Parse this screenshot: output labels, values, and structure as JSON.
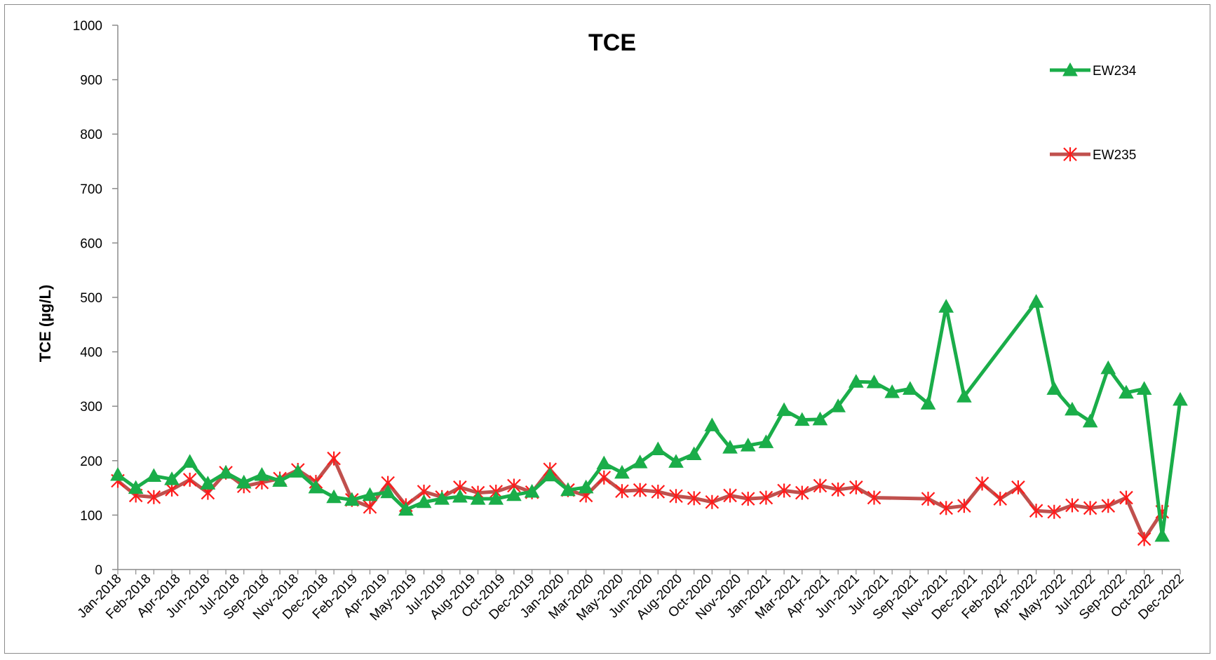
{
  "chart_data": {
    "type": "line",
    "title": "TCE",
    "xlabel": "",
    "ylabel": "TCE (µg/L)",
    "ylim": [
      0,
      1000
    ],
    "yticks": [
      "0",
      "100",
      "200",
      "300",
      "400",
      "500",
      "600",
      "700",
      "800",
      "900",
      "1000"
    ],
    "grid": false,
    "legend_position": "top-right",
    "xtick_labels": [
      "Jan-2018",
      "Feb-2018",
      "Apr-2018",
      "Jun-2018",
      "Jul-2018",
      "Sep-2018",
      "Nov-2018",
      "Dec-2018",
      "Feb-2019",
      "Apr-2019",
      "May-2019",
      "Jul-2019",
      "Aug-2019",
      "Oct-2019",
      "Dec-2019",
      "Jan-2020",
      "Mar-2020",
      "May-2020",
      "Jun-2020",
      "Aug-2020",
      "Oct-2020",
      "Nov-2020",
      "Jan-2021",
      "Mar-2021",
      "Apr-2021",
      "Jun-2021",
      "Jul-2021",
      "Sep-2021",
      "Nov-2021",
      "Dec-2021",
      "Feb-2022",
      "Apr-2022",
      "May-2022",
      "Jul-2022",
      "Sep-2022",
      "Oct-2022",
      "Dec-2022"
    ],
    "x": [
      "2018-01-01",
      "2018-02-01",
      "2018-03-01",
      "2018-04-01",
      "2018-05-01",
      "2018-06-01",
      "2018-07-01",
      "2018-08-01",
      "2018-09-01",
      "2018-10-01",
      "2018-11-01",
      "2018-12-01",
      "2019-01-01",
      "2019-02-01",
      "2019-03-01",
      "2019-04-01",
      "2019-05-01",
      "2019-06-01",
      "2019-07-01",
      "2019-08-01",
      "2019-09-01",
      "2019-10-01",
      "2019-11-01",
      "2019-12-01",
      "2020-01-01",
      "2020-02-01",
      "2020-03-01",
      "2020-04-01",
      "2020-05-01",
      "2020-06-01",
      "2020-07-01",
      "2020-08-01",
      "2020-09-01",
      "2020-10-01",
      "2020-11-01",
      "2020-12-01",
      "2021-01-01",
      "2021-02-01",
      "2021-03-01",
      "2021-04-01",
      "2021-05-01",
      "2021-06-01",
      "2021-07-01",
      "2021-08-01",
      "2021-09-01",
      "2021-10-01",
      "2021-11-01",
      "2021-12-01",
      "2022-01-01",
      "2022-02-01",
      "2022-03-01",
      "2022-04-01",
      "2022-05-01",
      "2022-06-01",
      "2022-07-01",
      "2022-08-01",
      "2022-09-01",
      "2022-10-01",
      "2022-11-01",
      "2022-12-01"
    ],
    "series": [
      {
        "name": "EW234",
        "color": "#1aad49",
        "marker": "triangle",
        "points": [
          [
            "2018-01-01",
            174
          ],
          [
            "2018-02-01",
            150
          ],
          [
            "2018-03-01",
            172
          ],
          [
            "2018-04-01",
            166
          ],
          [
            "2018-05-01",
            198
          ],
          [
            "2018-06-01",
            158
          ],
          [
            "2018-07-01",
            178
          ],
          [
            "2018-08-01",
            160
          ],
          [
            "2018-09-01",
            174
          ],
          [
            "2018-10-01",
            163
          ],
          [
            "2018-11-01",
            180
          ],
          [
            "2018-12-01",
            151
          ],
          [
            "2019-01-01",
            133
          ],
          [
            "2019-02-01",
            128
          ],
          [
            "2019-03-01",
            137
          ],
          [
            "2019-04-01",
            142
          ],
          [
            "2019-05-01",
            110
          ],
          [
            "2019-06-01",
            124
          ],
          [
            "2019-07-01",
            130
          ],
          [
            "2019-08-01",
            134
          ],
          [
            "2019-09-01",
            130
          ],
          [
            "2019-10-01",
            130
          ],
          [
            "2019-11-01",
            137
          ],
          [
            "2019-12-01",
            143
          ],
          [
            "2020-01-01",
            173
          ],
          [
            "2020-02-01",
            146
          ],
          [
            "2020-03-01",
            151
          ],
          [
            "2020-04-01",
            195
          ],
          [
            "2020-05-01",
            178
          ],
          [
            "2020-06-01",
            197
          ],
          [
            "2020-07-01",
            221
          ],
          [
            "2020-08-01",
            198
          ],
          [
            "2020-09-01",
            212
          ],
          [
            "2020-10-01",
            265
          ],
          [
            "2020-11-01",
            224
          ],
          [
            "2020-12-01",
            228
          ],
          [
            "2021-01-01",
            234
          ],
          [
            "2021-02-01",
            293
          ],
          [
            "2021-03-01",
            275
          ],
          [
            "2021-04-01",
            276
          ],
          [
            "2021-05-01",
            300
          ],
          [
            "2021-06-01",
            345
          ],
          [
            "2021-07-01",
            344
          ],
          [
            "2021-08-01",
            326
          ],
          [
            "2021-09-01",
            332
          ],
          [
            "2021-10-01",
            305
          ],
          [
            "2021-11-01",
            483
          ],
          [
            "2021-12-01",
            318
          ],
          [
            "2022-04-01",
            492
          ],
          [
            "2022-05-01",
            332
          ],
          [
            "2022-06-01",
            294
          ],
          [
            "2022-07-01",
            272
          ],
          [
            "2022-08-01",
            370
          ],
          [
            "2022-09-01",
            325
          ],
          [
            "2022-10-01",
            332
          ],
          [
            "2022-11-01",
            62
          ],
          [
            "2022-12-01",
            312
          ]
        ]
      },
      {
        "name": "EW235",
        "color": "#c0504d",
        "marker": "star",
        "points": [
          [
            "2018-01-01",
            163
          ],
          [
            "2018-02-01",
            136
          ],
          [
            "2018-03-01",
            133
          ],
          [
            "2018-04-01",
            147
          ],
          [
            "2018-05-01",
            165
          ],
          [
            "2018-06-01",
            141
          ],
          [
            "2018-07-01",
            178
          ],
          [
            "2018-08-01",
            153
          ],
          [
            "2018-09-01",
            160
          ],
          [
            "2018-10-01",
            167
          ],
          [
            "2018-11-01",
            183
          ],
          [
            "2018-12-01",
            161
          ],
          [
            "2019-01-01",
            204
          ],
          [
            "2019-02-01",
            128
          ],
          [
            "2019-03-01",
            115
          ],
          [
            "2019-04-01",
            159
          ],
          [
            "2019-05-01",
            118
          ],
          [
            "2019-06-01",
            143
          ],
          [
            "2019-07-01",
            133
          ],
          [
            "2019-08-01",
            151
          ],
          [
            "2019-09-01",
            141
          ],
          [
            "2019-10-01",
            143
          ],
          [
            "2019-11-01",
            154
          ],
          [
            "2019-12-01",
            142
          ],
          [
            "2020-01-01",
            184
          ],
          [
            "2020-02-01",
            146
          ],
          [
            "2020-03-01",
            136
          ],
          [
            "2020-04-01",
            169
          ],
          [
            "2020-05-01",
            144
          ],
          [
            "2020-06-01",
            146
          ],
          [
            "2020-07-01",
            143
          ],
          [
            "2020-08-01",
            135
          ],
          [
            "2020-09-01",
            131
          ],
          [
            "2020-10-01",
            124
          ],
          [
            "2020-11-01",
            136
          ],
          [
            "2020-12-01",
            130
          ],
          [
            "2021-01-01",
            132
          ],
          [
            "2021-02-01",
            145
          ],
          [
            "2021-03-01",
            141
          ],
          [
            "2021-04-01",
            154
          ],
          [
            "2021-05-01",
            147
          ],
          [
            "2021-06-01",
            151
          ],
          [
            "2021-07-01",
            132
          ],
          [
            "2021-10-01",
            130
          ],
          [
            "2021-11-01",
            113
          ],
          [
            "2021-12-01",
            117
          ],
          [
            "2022-01-01",
            158
          ],
          [
            "2022-02-01",
            130
          ],
          [
            "2022-03-01",
            151
          ],
          [
            "2022-04-01",
            108
          ],
          [
            "2022-05-01",
            106
          ],
          [
            "2022-06-01",
            118
          ],
          [
            "2022-07-01",
            113
          ],
          [
            "2022-08-01",
            117
          ],
          [
            "2022-09-01",
            132
          ],
          [
            "2022-10-01",
            56
          ],
          [
            "2022-11-01",
            106
          ]
        ]
      }
    ]
  }
}
